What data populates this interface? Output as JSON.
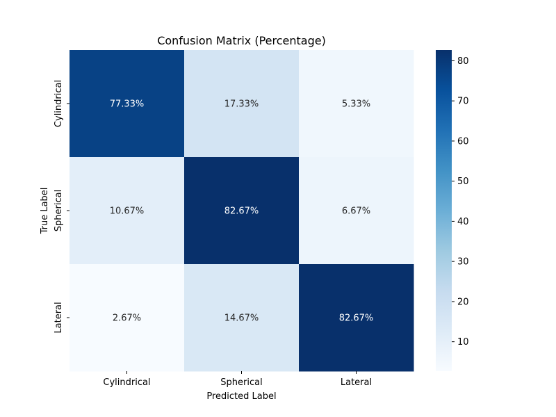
{
  "chart_data": {
    "type": "heatmap",
    "title": "Confusion Matrix (Percentage)",
    "xlabel": "Predicted Label",
    "ylabel": "True Label",
    "x_categories": [
      "Cylindrical",
      "Spherical",
      "Lateral"
    ],
    "y_categories": [
      "Cylindrical",
      "Spherical",
      "Lateral"
    ],
    "values": [
      [
        77.33,
        17.33,
        5.33
      ],
      [
        10.67,
        82.67,
        6.67
      ],
      [
        2.67,
        14.67,
        82.67
      ]
    ],
    "cell_labels": [
      [
        "77.33%",
        "17.33%",
        "5.33%"
      ],
      [
        "10.67%",
        "82.67%",
        "6.67%"
      ],
      [
        "2.67%",
        "14.67%",
        "82.67%"
      ]
    ],
    "colormap": "Blues",
    "color_range": [
      2.67,
      82.67
    ],
    "colorbar_ticks": [
      10,
      20,
      30,
      40,
      50,
      60,
      70,
      80
    ]
  }
}
